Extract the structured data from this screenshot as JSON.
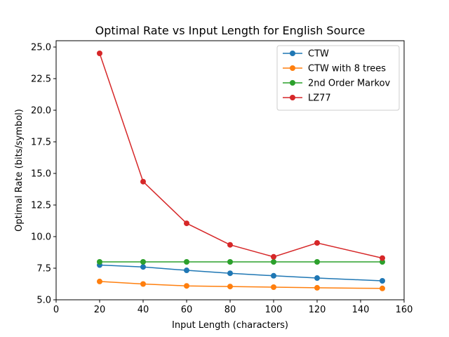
{
  "chart_data": {
    "type": "line",
    "title": "Optimal Rate vs Input Length for English Source",
    "xlabel": "Input Length (characters)",
    "ylabel": "Optimal Rate (bits/symbol)",
    "xlim": [
      0,
      160
    ],
    "ylim": [
      5.0,
      25.5
    ],
    "xticks": [
      0,
      20,
      40,
      60,
      80,
      100,
      120,
      140,
      160
    ],
    "xtick_labels": [
      "0",
      "20",
      "40",
      "60",
      "80",
      "100",
      "120",
      "140",
      "160"
    ],
    "yticks": [
      5.0,
      7.5,
      10.0,
      12.5,
      15.0,
      17.5,
      20.0,
      22.5,
      25.0
    ],
    "ytick_labels": [
      "5.0",
      "7.5",
      "10.0",
      "12.5",
      "15.0",
      "17.5",
      "20.0",
      "22.5",
      "25.0"
    ],
    "grid": false,
    "legend_position": "top-right",
    "x": [
      20,
      40,
      60,
      80,
      100,
      120,
      150
    ],
    "series": [
      {
        "name": "CTW",
        "color": "#1f77b4",
        "values": [
          7.75,
          7.6,
          7.33,
          7.1,
          6.9,
          6.72,
          6.5
        ]
      },
      {
        "name": "CTW with 8 trees",
        "color": "#ff7f0e",
        "values": [
          6.45,
          6.25,
          6.1,
          6.05,
          6.0,
          5.95,
          5.9
        ]
      },
      {
        "name": "2nd Order Markov",
        "color": "#2ca02c",
        "values": [
          8.0,
          8.0,
          8.0,
          8.0,
          8.0,
          8.0,
          8.0
        ]
      },
      {
        "name": "LZ77",
        "color": "#d62728",
        "values": [
          24.5,
          14.35,
          11.05,
          9.35,
          8.4,
          9.5,
          8.3
        ]
      }
    ]
  }
}
